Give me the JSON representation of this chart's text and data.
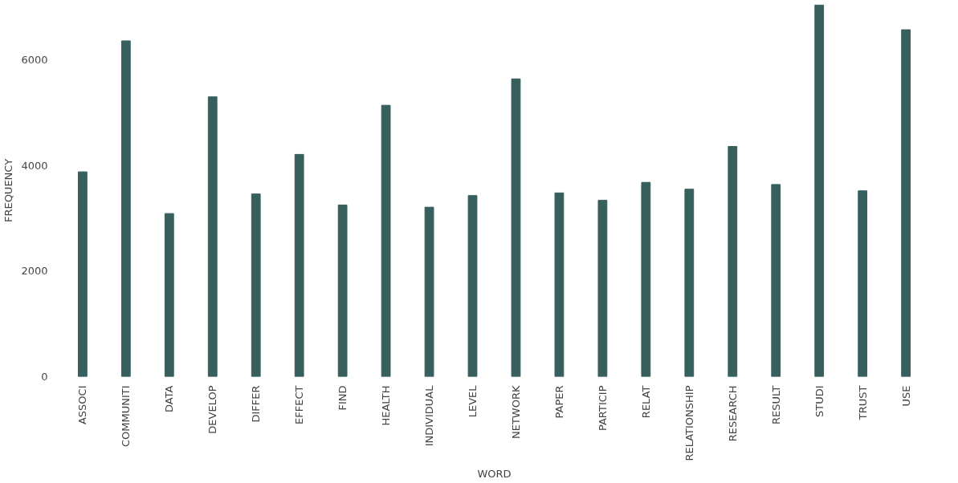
{
  "chart_data": {
    "type": "bar",
    "xlabel": "WORD",
    "ylabel": "FREQUENCY",
    "categories": [
      "ASSOCI",
      "COMMUNITI",
      "DATA",
      "DEVELOP",
      "DIFFER",
      "EFFECT",
      "FIND",
      "HEALTH",
      "INDIVIDUAL",
      "LEVEL",
      "NETWORK",
      "PAPER",
      "PARTICIP",
      "RELAT",
      "RELATIONSHIP",
      "RESEARCH",
      "RESULT",
      "STUDI",
      "TRUST",
      "USE"
    ],
    "values": [
      3880,
      6360,
      3090,
      5300,
      3460,
      4210,
      3250,
      5140,
      3210,
      3430,
      5640,
      3480,
      3340,
      3680,
      3550,
      4360,
      3640,
      7040,
      3520,
      6570
    ],
    "color": "#365f5e",
    "ylim": [
      0,
      7050
    ],
    "yticks": [
      0,
      2000,
      4000,
      6000
    ],
    "grid": false
  }
}
